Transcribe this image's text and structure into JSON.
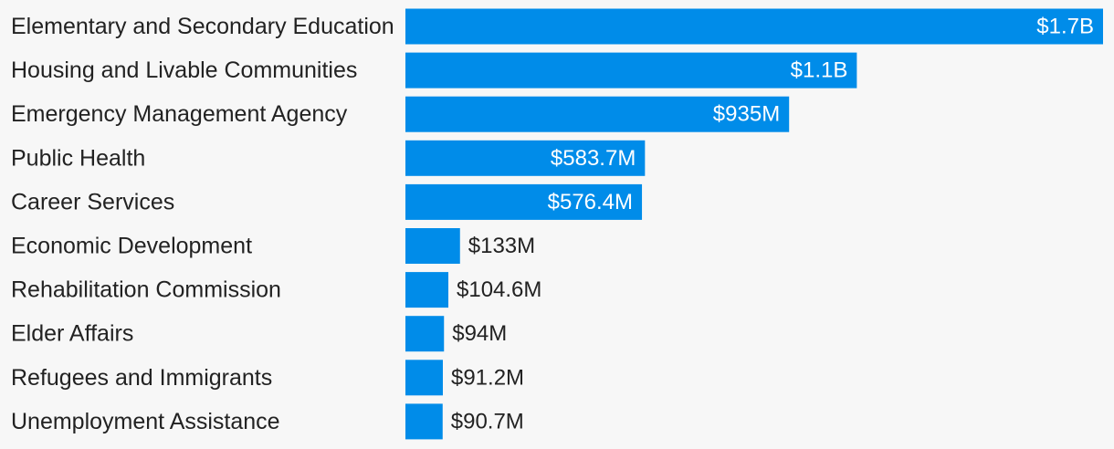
{
  "colors": {
    "bar": "#008ce9",
    "background": "#f7f7f7",
    "label_text": "#222222",
    "value_inside": "#ffffff",
    "value_outside": "#222222"
  },
  "chart_data": {
    "type": "bar",
    "orientation": "horizontal",
    "title": "",
    "xlabel": "",
    "ylabel": "",
    "grid": false,
    "xlim": [
      0,
      1.7
    ],
    "unit": "billions of dollars",
    "categories": [
      "Elementary and Secondary Education",
      "Housing and Livable Communities",
      "Emergency Management Agency",
      "Public Health",
      "Career Services",
      "Economic Development",
      "Rehabilitation Commission",
      "Elder Affairs",
      "Refugees and Immigrants",
      "Unemployment Assistance"
    ],
    "values": [
      1.7,
      1.1,
      0.935,
      0.5837,
      0.5764,
      0.133,
      0.1046,
      0.094,
      0.0912,
      0.0907
    ],
    "data_labels": [
      "$1.7B",
      "$1.1B",
      "$935M",
      "$583.7M",
      "$576.4M",
      "$133M",
      "$104.6M",
      "$94M",
      "$91.2M",
      "$90.7M"
    ]
  }
}
